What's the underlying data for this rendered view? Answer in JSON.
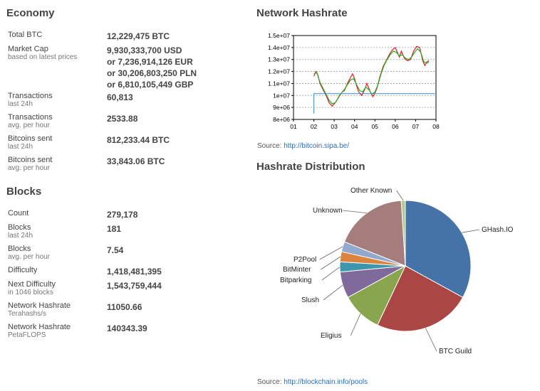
{
  "economy": {
    "title": "Economy",
    "rows": [
      {
        "label": "Total BTC",
        "sub": "",
        "values": [
          "12,229,475 BTC"
        ]
      },
      {
        "label": "Market Cap",
        "sub": "based on latest prices",
        "values": [
          "9,930,333,700 USD",
          "or 7,236,914,126 EUR",
          "or 30,206,803,250 PLN",
          "or 6,810,105,449 GBP"
        ]
      },
      {
        "label": "Transactions",
        "sub": "last 24h",
        "values": [
          "60,813"
        ]
      },
      {
        "label": "Transactions",
        "sub": "avg. per hour",
        "values": [
          "2533.88"
        ]
      },
      {
        "label": "Bitcoins sent",
        "sub": "last 24h",
        "values": [
          "812,233.44 BTC"
        ]
      },
      {
        "label": "Bitcoins sent",
        "sub": "avg. per hour",
        "values": [
          "33,843.06 BTC"
        ]
      }
    ]
  },
  "blocks": {
    "title": "Blocks",
    "rows": [
      {
        "label": "Count",
        "sub": "",
        "values": [
          "279,178"
        ]
      },
      {
        "label": "Blocks",
        "sub": "last 24h",
        "values": [
          "181"
        ]
      },
      {
        "label": "Blocks",
        "sub": "avg. per hour",
        "values": [
          "7.54"
        ]
      },
      {
        "label": "Difficulty",
        "sub": "",
        "values": [
          "1,418,481,395"
        ]
      },
      {
        "label": "Next Difficulty",
        "sub": "in 1046 blocks",
        "values": [
          "1,543,759,444"
        ]
      },
      {
        "label": "Network Hashrate",
        "sub": "Terahashs/s",
        "values": [
          "11050.66"
        ]
      },
      {
        "label": "Network Hashrate",
        "sub": "PetaFLOPS",
        "values": [
          "140343.39"
        ]
      }
    ]
  },
  "network_hashrate": {
    "title": "Network Hashrate",
    "source_label": "Source:",
    "source_link": "http://bitcoin.sipa.be/"
  },
  "hashrate_distribution": {
    "title": "Hashrate Distribution",
    "source_label": "Source:",
    "source_link": "http://blockchain.info/pools"
  },
  "chart_data": [
    {
      "type": "line",
      "title": "",
      "xlabel": "",
      "ylabel": "",
      "x_ticks": [
        "01",
        "02",
        "03",
        "04",
        "05",
        "06",
        "07",
        "08"
      ],
      "y_ticks": [
        "8e+06",
        "9e+06",
        "1e+07",
        "1.1e+07",
        "1.2e+07",
        "1.3e+07",
        "1.4e+07",
        "1.5e+07"
      ],
      "xlim": [
        1,
        8
      ],
      "ylim": [
        8000000,
        15000000
      ],
      "grid": true,
      "colors": {
        "raw": "#e02020",
        "smoothed": "#22aa22",
        "marker": "#3a8ad0"
      },
      "series": [
        {
          "values": [
            [
              2.0,
              11600000
            ],
            [
              2.1,
              12000000
            ],
            [
              2.2,
              11700000
            ],
            [
              2.3,
              11000000
            ],
            [
              2.45,
              10500000
            ],
            [
              2.6,
              10000000
            ],
            [
              2.75,
              9400000
            ],
            [
              2.9,
              9100000
            ],
            [
              3.0,
              9300000
            ],
            [
              3.1,
              9500000
            ],
            [
              3.25,
              10000000
            ],
            [
              3.4,
              10300000
            ],
            [
              3.5,
              10400000
            ],
            [
              3.65,
              11000000
            ],
            [
              3.8,
              11500000
            ],
            [
              3.9,
              11800000
            ],
            [
              4.0,
              11400000
            ],
            [
              4.1,
              10800000
            ],
            [
              4.2,
              10300000
            ],
            [
              4.35,
              10000000
            ],
            [
              4.5,
              10500000
            ],
            [
              4.6,
              11000000
            ],
            [
              4.75,
              10400000
            ],
            [
              4.9,
              9900000
            ],
            [
              5.0,
              10200000
            ],
            [
              5.1,
              10600000
            ],
            [
              5.25,
              11600000
            ],
            [
              5.4,
              12400000
            ],
            [
              5.55,
              12900000
            ],
            [
              5.7,
              13400000
            ],
            [
              5.85,
              13800000
            ],
            [
              6.0,
              14000000
            ],
            [
              6.1,
              13600000
            ],
            [
              6.2,
              13200000
            ],
            [
              6.3,
              13700000
            ],
            [
              6.45,
              13100000
            ],
            [
              6.6,
              12900000
            ],
            [
              6.75,
              13000000
            ],
            [
              6.9,
              13700000
            ],
            [
              7.05,
              14100000
            ],
            [
              7.2,
              14000000
            ],
            [
              7.35,
              12900000
            ],
            [
              7.45,
              12500000
            ],
            [
              7.55,
              12800000
            ],
            [
              7.65,
              12900000
            ]
          ]
        },
        {
          "values": [
            [
              2.0,
              11800000
            ],
            [
              2.15,
              11900000
            ],
            [
              2.3,
              11100000
            ],
            [
              2.45,
              10600000
            ],
            [
              2.6,
              10100000
            ],
            [
              2.75,
              9600000
            ],
            [
              2.9,
              9300000
            ],
            [
              3.05,
              9400000
            ],
            [
              3.2,
              9800000
            ],
            [
              3.35,
              10200000
            ],
            [
              3.5,
              10500000
            ],
            [
              3.65,
              10900000
            ],
            [
              3.8,
              11300000
            ],
            [
              3.95,
              11400000
            ],
            [
              4.1,
              10900000
            ],
            [
              4.25,
              10400000
            ],
            [
              4.4,
              10300000
            ],
            [
              4.55,
              10700000
            ],
            [
              4.7,
              10500000
            ],
            [
              4.85,
              10100000
            ],
            [
              5.0,
              10300000
            ],
            [
              5.15,
              10900000
            ],
            [
              5.3,
              11800000
            ],
            [
              5.45,
              12500000
            ],
            [
              5.6,
              13000000
            ],
            [
              5.75,
              13400000
            ],
            [
              5.9,
              13700000
            ],
            [
              6.05,
              13600000
            ],
            [
              6.2,
              13300000
            ],
            [
              6.35,
              13400000
            ],
            [
              6.5,
              13100000
            ],
            [
              6.65,
              13000000
            ],
            [
              6.8,
              13200000
            ],
            [
              6.95,
              13600000
            ],
            [
              7.1,
              13900000
            ],
            [
              7.25,
              13600000
            ],
            [
              7.4,
              12800000
            ],
            [
              7.55,
              12700000
            ],
            [
              7.65,
              12800000
            ]
          ]
        },
        {
          "values": [
            [
              2.0,
              8500000
            ],
            [
              2.0,
              10150000
            ],
            [
              7.95,
              10150000
            ]
          ]
        }
      ]
    },
    {
      "type": "pie",
      "title": "",
      "colors_note": "slice colors as drawn",
      "slices": [
        {
          "label": "GHash.IO",
          "value": 33.0,
          "color": "#4572a7"
        },
        {
          "label": "BTC Guild",
          "value": 24.0,
          "color": "#aa4643"
        },
        {
          "label": "Eligius",
          "value": 10.0,
          "color": "#89a54e"
        },
        {
          "label": "Slush",
          "value": 6.5,
          "color": "#80699b"
        },
        {
          "label": "Bitparking",
          "value": 2.5,
          "color": "#3d96ae"
        },
        {
          "label": "BitMinter",
          "value": 2.5,
          "color": "#db843d"
        },
        {
          "label": "P2Pool",
          "value": 2.5,
          "color": "#92a8cd"
        },
        {
          "label": "Unknown",
          "value": 18.0,
          "color": "#a47d7c"
        },
        {
          "label": "Other Known",
          "value": 1.0,
          "color": "#b5ca92"
        }
      ]
    }
  ]
}
